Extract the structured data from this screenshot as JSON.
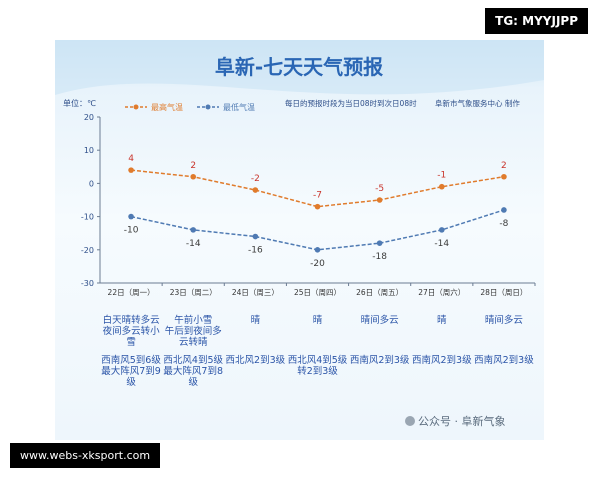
{
  "header": {
    "title": "阜新-七天天气预报"
  },
  "overlay": {
    "tg": "TG: MYYJJPP",
    "url": "www.webs-xksport.com"
  },
  "footer": {
    "brand": "公众号 · 阜新气象"
  },
  "colors": {
    "high": "#e07b2c",
    "low": "#4f7ab3",
    "title": "#2a66b4",
    "axis_label": "#2f4f8a",
    "value_high": "#c9352c",
    "value_low": "#3b3b3b"
  },
  "chart_data": {
    "type": "line",
    "unit_label": "单位：℃",
    "note": "每日的预报时段为当日08时到次日08时",
    "credit": "阜新市气象服务中心 制作",
    "legend_position": "top",
    "grid": false,
    "ylim": [
      -30,
      20
    ],
    "yticks": [
      20,
      10,
      0,
      -10,
      -20,
      -30
    ],
    "categories": [
      "22日（周一）",
      "23日（周二）",
      "24日（周三）",
      "25日（周四）",
      "26日（周五）",
      "27日（周六）",
      "28日（周日）"
    ],
    "series": [
      {
        "name": "最高气温",
        "values": [
          4,
          2,
          -2,
          -7,
          -5,
          -1,
          2
        ]
      },
      {
        "name": "最低气温",
        "values": [
          -10,
          -14,
          -16,
          -20,
          -18,
          -14,
          -8
        ]
      }
    ],
    "weather": [
      "白天晴转多云\n夜间多云转小\n雪",
      "午前小雪\n午后到夜间多\n云转晴",
      "晴",
      "晴",
      "晴间多云",
      "晴",
      "晴间多云"
    ],
    "wind": [
      "西南风5到6级\n最大阵风7到9\n级",
      "西北风4到5级\n最大阵风7到8\n级",
      "西北风2到3级",
      "西北风4到5级\n转2到3级",
      "西南风2到3级",
      "西南风2到3级",
      "西南风2到3级"
    ]
  }
}
